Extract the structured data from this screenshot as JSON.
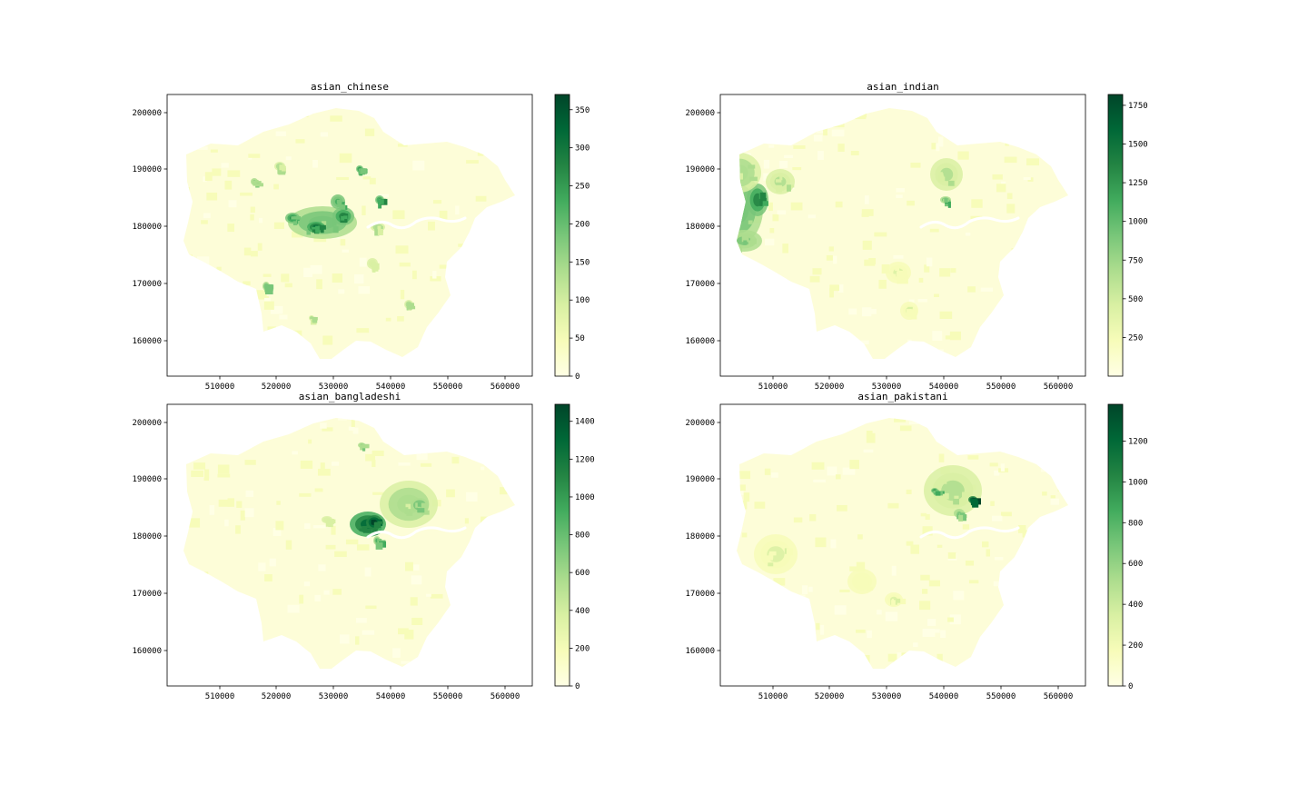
{
  "colormap": [
    "#ffffe5",
    "#f7fcb9",
    "#d9f0a3",
    "#addd8e",
    "#78c679",
    "#41ab5d",
    "#238443",
    "#006837",
    "#004529"
  ],
  "chart_data": [
    {
      "type": "choropleth",
      "title": "asian_chinese",
      "x_ticks": [
        "510000",
        "520000",
        "530000",
        "540000",
        "550000",
        "560000"
      ],
      "y_ticks": [
        "160000",
        "170000",
        "180000",
        "190000",
        "200000"
      ],
      "colorbar": {
        "min": 0,
        "max": 370,
        "ticks": [
          "0",
          "50",
          "100",
          "150",
          "200",
          "250",
          "300",
          "350"
        ],
        "tick_values": [
          0,
          50,
          100,
          150,
          200,
          250,
          300,
          350
        ]
      }
    },
    {
      "type": "choropleth",
      "title": "asian_indian",
      "x_ticks": [
        "510000",
        "520000",
        "530000",
        "540000",
        "550000",
        "560000"
      ],
      "y_ticks": [
        "160000",
        "170000",
        "180000",
        "190000",
        "200000"
      ],
      "colorbar": {
        "min": 0,
        "max": 1820,
        "ticks": [
          "250",
          "500",
          "750",
          "1000",
          "1250",
          "1500",
          "1750"
        ],
        "tick_values": [
          250,
          500,
          750,
          1000,
          1250,
          1500,
          1750
        ]
      }
    },
    {
      "type": "choropleth",
      "title": "asian_bangladeshi",
      "x_ticks": [
        "510000",
        "520000",
        "530000",
        "540000",
        "550000",
        "560000"
      ],
      "y_ticks": [
        "160000",
        "170000",
        "180000",
        "190000",
        "200000"
      ],
      "colorbar": {
        "min": 0,
        "max": 1490,
        "ticks": [
          "0",
          "200",
          "400",
          "600",
          "800",
          "1000",
          "1200",
          "1400"
        ],
        "tick_values": [
          0,
          200,
          400,
          600,
          800,
          1000,
          1200,
          1400
        ]
      }
    },
    {
      "type": "choropleth",
      "title": "asian_pakistani",
      "x_ticks": [
        "510000",
        "520000",
        "530000",
        "540000",
        "550000",
        "560000"
      ],
      "y_ticks": [
        "160000",
        "170000",
        "180000",
        "190000",
        "200000"
      ],
      "colorbar": {
        "min": 0,
        "max": 1380,
        "ticks": [
          "0",
          "200",
          "400",
          "600",
          "800",
          "1000",
          "1200"
        ],
        "tick_values": [
          0,
          200,
          400,
          600,
          800,
          1000,
          1200
        ]
      }
    }
  ]
}
